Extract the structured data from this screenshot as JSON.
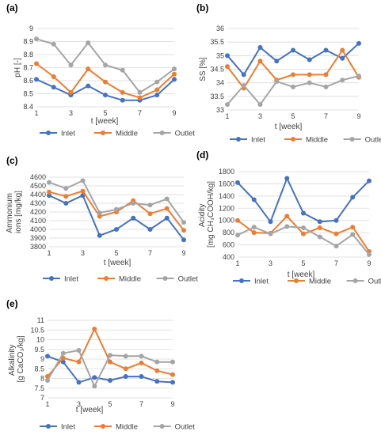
{
  "colors": {
    "Inlet": "#4472C4",
    "Middle": "#ED7D31",
    "Outlet": "#A5A5A5"
  },
  "chart_data": [
    {
      "id": "a",
      "type": "line",
      "panel_label": "(a)",
      "ylabel": "pH [-]",
      "xlabel": "t [week]",
      "ylim": [
        8.4,
        9.0
      ],
      "yticks": [
        "8.4",
        "8.5",
        "8.6",
        "8.7",
        "8.8",
        "8.9",
        "9"
      ],
      "xticks": [
        "1",
        "3",
        "5",
        "7",
        "9"
      ],
      "x": [
        1,
        2,
        3,
        4,
        5,
        6,
        7,
        8,
        9
      ],
      "series": [
        {
          "name": "Inlet",
          "values": [
            8.61,
            8.55,
            8.49,
            8.56,
            8.49,
            8.45,
            8.45,
            8.49,
            8.61
          ]
        },
        {
          "name": "Middle",
          "values": [
            8.73,
            8.63,
            8.51,
            8.69,
            8.59,
            8.51,
            8.47,
            8.53,
            8.65
          ]
        },
        {
          "name": "Outlet",
          "values": [
            8.92,
            8.88,
            8.72,
            8.89,
            8.72,
            8.68,
            8.51,
            8.59,
            8.69
          ]
        }
      ],
      "legend": [
        "Inlet",
        "Middle",
        "Outlet"
      ]
    },
    {
      "id": "b",
      "type": "line",
      "panel_label": "(b)",
      "ylabel": "SS [%]",
      "xlabel": "t [week]",
      "ylim": [
        33,
        36
      ],
      "yticks": [
        "33",
        "33.5",
        "34",
        "34.5",
        "35",
        "35.5",
        "36"
      ],
      "xticks": [
        "1",
        "3",
        "5",
        "7",
        "9"
      ],
      "x": [
        1,
        2,
        3,
        4,
        5,
        6,
        7,
        8,
        9
      ],
      "series": [
        {
          "name": "Inlet",
          "values": [
            35.0,
            34.3,
            35.3,
            34.8,
            35.2,
            34.85,
            35.2,
            34.9,
            35.45
          ]
        },
        {
          "name": "Middle",
          "values": [
            34.6,
            33.8,
            34.8,
            34.1,
            34.3,
            34.3,
            34.3,
            35.2,
            34.2
          ]
        },
        {
          "name": "Outlet",
          "values": [
            33.2,
            33.9,
            33.2,
            34.05,
            33.85,
            34.0,
            33.85,
            34.1,
            34.25
          ]
        }
      ],
      "legend": [
        "Inlet",
        "Middle",
        "Outlet"
      ]
    },
    {
      "id": "c",
      "type": "line",
      "panel_label": "(c)",
      "ylabel": "Ammonium ions [mg/kg]",
      "xlabel": "t [week]",
      "ylim": [
        3800,
        4600
      ],
      "yticks": [
        "3800",
        "3900",
        "4000",
        "4100",
        "4200",
        "4300",
        "4400",
        "4500",
        "4600"
      ],
      "xticks": [
        "1",
        "3",
        "5",
        "7",
        "9"
      ],
      "x": [
        1,
        2,
        3,
        4,
        5,
        6,
        7,
        8,
        9
      ],
      "series": [
        {
          "name": "Inlet",
          "values": [
            4390,
            4300,
            4390,
            3930,
            4000,
            4130,
            4000,
            4130,
            3880
          ]
        },
        {
          "name": "Middle",
          "values": [
            4430,
            4380,
            4440,
            4150,
            4200,
            4330,
            4180,
            4240,
            3990
          ]
        },
        {
          "name": "Outlet",
          "values": [
            4540,
            4470,
            4560,
            4190,
            4230,
            4300,
            4280,
            4350,
            4080
          ]
        }
      ],
      "legend": [
        "Inlet",
        "Middle",
        "Outlet"
      ]
    },
    {
      "id": "d",
      "type": "line",
      "panel_label": "(d)",
      "ylabel": "Acidity [mg CH₃COOH/kg]",
      "xlabel": "t [week]",
      "ylim": [
        400,
        1800
      ],
      "yticks": [
        "400",
        "600",
        "800",
        "1000",
        "1200",
        "1400",
        "1600",
        "1800"
      ],
      "xticks": [
        "1",
        "3",
        "5",
        "7",
        "9"
      ],
      "x": [
        1,
        2,
        3,
        4,
        5,
        6,
        7,
        8,
        9
      ],
      "series": [
        {
          "name": "Inlet",
          "values": [
            1620,
            1340,
            980,
            1690,
            1120,
            980,
            1000,
            1380,
            1650
          ]
        },
        {
          "name": "Middle",
          "values": [
            1000,
            800,
            790,
            1070,
            780,
            880,
            780,
            890,
            490
          ]
        },
        {
          "name": "Outlet",
          "values": [
            760,
            890,
            780,
            900,
            880,
            730,
            580,
            770,
            440
          ]
        }
      ],
      "legend": [
        "Inlet",
        "Middle",
        "Outlet"
      ]
    },
    {
      "id": "e",
      "type": "line",
      "panel_label": "(e)",
      "ylabel": "Alkalinity [g CaCO₃/kg]",
      "xlabel": "t [week]",
      "ylim": [
        7,
        11
      ],
      "yticks": [
        "7",
        "7.5",
        "8",
        "8.5",
        "9",
        "9.5",
        "10",
        "10.5",
        "11"
      ],
      "xticks": [
        "1",
        "3",
        "5",
        "7",
        "9"
      ],
      "x": [
        1,
        2,
        3,
        4,
        5,
        6,
        7,
        8,
        9
      ],
      "series": [
        {
          "name": "Inlet",
          "values": [
            9.15,
            8.85,
            7.8,
            8.05,
            7.9,
            8.1,
            8.1,
            7.85,
            7.8
          ]
        },
        {
          "name": "Middle",
          "values": [
            8.1,
            9.05,
            8.85,
            10.55,
            8.85,
            8.5,
            8.8,
            8.4,
            8.2
          ]
        },
        {
          "name": "Outlet",
          "values": [
            7.9,
            9.3,
            9.45,
            7.6,
            9.2,
            9.15,
            9.15,
            8.85,
            8.85
          ]
        }
      ],
      "legend": [
        "Inlet",
        "Middle",
        "Outlet"
      ]
    }
  ]
}
